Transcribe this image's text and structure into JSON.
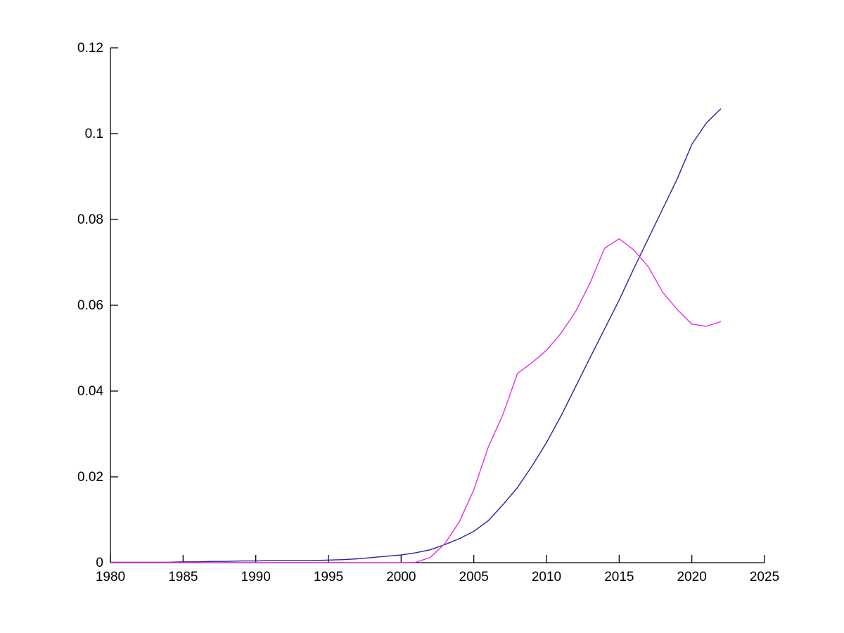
{
  "figure": {
    "background": "#ffffff",
    "title": ""
  },
  "chart_data": {
    "type": "line",
    "title": "",
    "xlabel": "",
    "ylabel": "",
    "grid": false,
    "box": false,
    "legend": null,
    "axis_color": "#000000",
    "xlim": [
      1980,
      2025
    ],
    "ylim": [
      0,
      0.12
    ],
    "x_ticks": {
      "values": [
        1980,
        1985,
        1990,
        1995,
        2000,
        2005,
        2010,
        2015,
        2020,
        2025
      ],
      "labels": [
        "1980",
        "1985",
        "1990",
        "1995",
        "2000",
        "2005",
        "2010",
        "2015",
        "2020",
        "2025"
      ]
    },
    "y_ticks": {
      "values": [
        0,
        0.02,
        0.04,
        0.06,
        0.08,
        0.1,
        0.12
      ],
      "labels": [
        "0",
        "0.02",
        "0.04",
        "0.06",
        "0.08",
        "0.1",
        "0.12"
      ]
    },
    "x": [
      1980,
      1981,
      1982,
      1983,
      1984,
      1985,
      1986,
      1987,
      1988,
      1989,
      1990,
      1991,
      1992,
      1993,
      1994,
      1995,
      1996,
      1997,
      1998,
      1999,
      2000,
      2001,
      2002,
      2003,
      2004,
      2005,
      2006,
      2007,
      2008,
      2009,
      2010,
      2011,
      2012,
      2013,
      2014,
      2015,
      2016,
      2017,
      2018,
      2019,
      2020,
      2021,
      2022
    ],
    "series": [
      {
        "name": "dark-blue-curve",
        "color": "#2424a0",
        "values": [
          0.0001,
          0.0001,
          0.0001,
          0.0001,
          0.0001,
          0.0002,
          0.0002,
          0.0003,
          0.0003,
          0.0004,
          0.0004,
          0.0005,
          0.0005,
          0.0005,
          0.0005,
          0.0006,
          0.0007,
          0.0009,
          0.0012,
          0.0015,
          0.0018,
          0.0023,
          0.003,
          0.0042,
          0.0056,
          0.0073,
          0.0098,
          0.0135,
          0.0175,
          0.0225,
          0.028,
          0.0342,
          0.041,
          0.0478,
          0.0545,
          0.0612,
          0.0685,
          0.0755,
          0.0825,
          0.0895,
          0.0975,
          0.1025,
          0.1058
        ]
      },
      {
        "name": "magenta-curve",
        "color": "#e332e3",
        "values": [
          0.0,
          0.0,
          0.0,
          0.0,
          0.0,
          0.0,
          0.0,
          0.0,
          0.0,
          0.0,
          0.0,
          0.0,
          0.0,
          0.0,
          0.0,
          0.0,
          0.0,
          0.0,
          0.0,
          0.0,
          0.0,
          0.0001,
          0.0012,
          0.0044,
          0.0095,
          0.017,
          0.027,
          0.0345,
          0.0441,
          0.0466,
          0.0495,
          0.0535,
          0.0585,
          0.0652,
          0.0733,
          0.0755,
          0.0729,
          0.069,
          0.063,
          0.059,
          0.0556,
          0.0551,
          0.0562
        ]
      }
    ]
  }
}
